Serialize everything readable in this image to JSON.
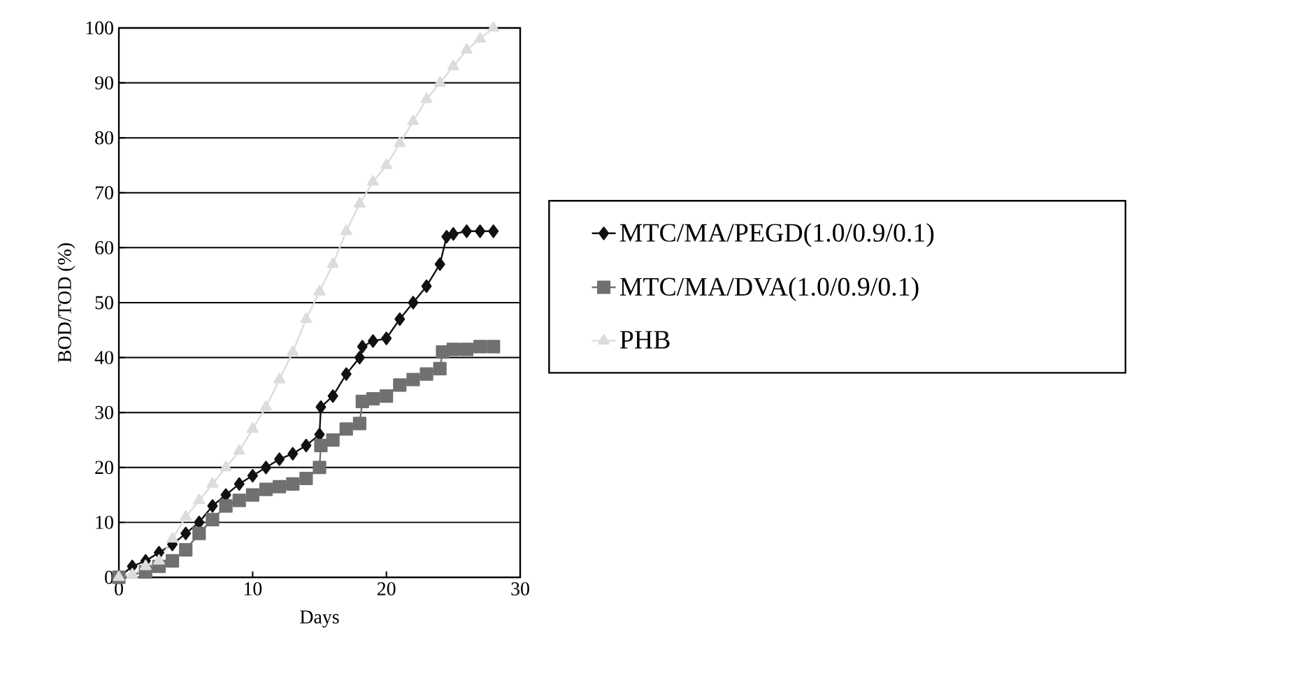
{
  "chart_data": {
    "type": "line",
    "xlabel": "Days",
    "ylabel": "BOD/TOD (%)",
    "xlim": [
      0,
      30
    ],
    "xticks": [
      0,
      10,
      20,
      30
    ],
    "ylim": [
      0,
      100
    ],
    "yticks": [
      0,
      10,
      20,
      30,
      40,
      50,
      60,
      70,
      80,
      90,
      100
    ],
    "grid": "y",
    "legend": "right",
    "line_style": "solid",
    "series": [
      {
        "name": "MTC/MA/PEGD(1.0/0.9/0.1)",
        "color": "#111111",
        "marker": "diamond",
        "x": [
          0,
          1,
          2,
          3,
          4,
          5,
          6,
          7,
          8,
          9,
          10,
          11,
          12,
          13,
          14,
          15,
          15.1,
          16,
          17,
          18,
          18.2,
          19,
          20,
          21,
          22,
          23,
          24,
          24.5,
          25,
          26,
          27,
          28
        ],
        "values": [
          0,
          2,
          3,
          4.5,
          6,
          8,
          10,
          13,
          15,
          17,
          18.5,
          20,
          21.5,
          22.5,
          24,
          26,
          31,
          33,
          37,
          40,
          42,
          43,
          43.5,
          47,
          50,
          53,
          57,
          62,
          62.5,
          63,
          63,
          63
        ]
      },
      {
        "name": "MTC/MA/DVA(1.0/0.9/0.1)",
        "color": "#707070",
        "marker": "square",
        "x": [
          0,
          2,
          3,
          4,
          5,
          6,
          7,
          8,
          9,
          10,
          11,
          12,
          13,
          14,
          15,
          15.1,
          16,
          17,
          18,
          18.2,
          19,
          20,
          21,
          22,
          23,
          24,
          24.2,
          25,
          26,
          27,
          28
        ],
        "values": [
          0,
          1,
          2,
          3,
          5,
          8,
          10.5,
          13,
          14,
          15,
          16,
          16.5,
          17,
          18,
          20,
          24,
          25,
          27,
          28,
          32,
          32.5,
          33,
          35,
          36,
          37,
          38,
          41,
          41.5,
          41.5,
          42,
          42
        ]
      },
      {
        "name": "PHB",
        "color": "#dcdcdc",
        "marker": "triangle",
        "x": [
          0,
          1,
          2,
          3,
          4,
          5,
          6,
          7,
          8,
          9,
          10,
          11,
          12,
          13,
          14,
          15,
          16,
          17,
          18,
          19,
          20,
          21,
          22,
          23,
          24,
          25,
          26,
          27,
          28
        ],
        "values": [
          0,
          0.5,
          2,
          3,
          7,
          11,
          14,
          17,
          20,
          23,
          27,
          31,
          36,
          41,
          47,
          52,
          57,
          63,
          68,
          72,
          75,
          79,
          83,
          87,
          90,
          93,
          96,
          98,
          100
        ]
      }
    ]
  }
}
